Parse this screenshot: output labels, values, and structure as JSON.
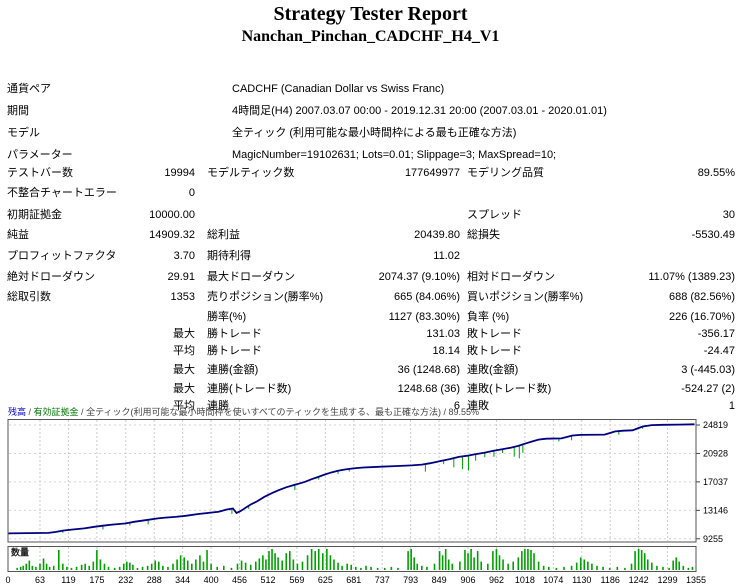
{
  "title": "Strategy Tester Report",
  "subtitle": "Nanchan_Pinchan_CADCHF_H4_V1",
  "info_rows": [
    {
      "label": "通貨ペア",
      "value": "CADCHF (Canadian Dollar vs Swiss Franc)"
    },
    {
      "label": "期間",
      "value": "4時間足(H4) 2007.03.07 00:00 - 2019.12.31 20:00 (2007.03.01 - 2020.01.01)"
    },
    {
      "label": "モデル",
      "value": "全ティック (利用可能な最小時間枠による最も正確な方法)"
    },
    {
      "label": "パラメーター",
      "value": "MagicNumber=19102631; Lots=0.01; Slippage=3; MaxSpread=10;"
    }
  ],
  "stat_rows": [
    {
      "c1": "テストバー数",
      "c2": "19994",
      "c3": "モデルティック数",
      "c4": "177649977",
      "c5": "モデリング品質",
      "c6": "89.55%"
    },
    {
      "c1": "不整合チャートエラー",
      "c2": "0",
      "c3": "",
      "c4": "",
      "c5": "",
      "c6": ""
    },
    {
      "c1": "初期証拠金",
      "c2": "10000.00",
      "c3": "",
      "c4": "",
      "c5": "スプレッド",
      "c6": "30"
    },
    {
      "c1": "純益",
      "c2": "14909.32",
      "c3": "総利益",
      "c4": "20439.80",
      "c5": "総損失",
      "c6": "-5530.49"
    },
    {
      "c1": "プロフィットファクタ",
      "c2": "3.70",
      "c3": "期待利得",
      "c4": "11.02",
      "c5": "",
      "c6": ""
    },
    {
      "c1": "絶対ドローダウン",
      "c2": "29.91",
      "c3": "最大ドローダウン",
      "c4": "2074.37 (9.10%)",
      "c5": "相対ドローダウン",
      "c6": "11.07% (1389.23)"
    },
    {
      "c1": "総取引数",
      "c2": "1353",
      "c3": "売りポジション(勝率%)",
      "c4": "665 (84.06%)",
      "c5": "買いポジション(勝率%)",
      "c6": "688 (82.56%)"
    },
    {
      "c1": "",
      "c2": "",
      "c3": "勝率(%)",
      "c4": "1127 (83.30%)",
      "c5": "負率 (%)",
      "c6": "226 (16.70%)"
    },
    {
      "c1": "",
      "c2": "最大",
      "c3": "勝トレード",
      "c4": "131.03",
      "c5": "敗トレード",
      "c6": "-356.17"
    },
    {
      "c1": "",
      "c2": "平均",
      "c3": "勝トレード",
      "c4": "18.14",
      "c5": "敗トレード",
      "c6": "-24.47"
    },
    {
      "c1": "",
      "c2": "最大",
      "c3": "連勝(金額)",
      "c4": "36 (1248.68)",
      "c5": "連敗(金額)",
      "c6": "3 (-445.03)"
    },
    {
      "c1": "",
      "c2": "最大",
      "c3": "連勝(トレード数)",
      "c4": "1248.68 (36)",
      "c5": "連敗(トレード数)",
      "c6": "-524.27 (2)"
    },
    {
      "c1": "",
      "c2": "平均",
      "c3": "連勝",
      "c4": "6",
      "c5": "連敗",
      "c6": "1"
    }
  ],
  "chart_caption": {
    "parts": [
      {
        "text": "残高",
        "color": "#0000CC"
      },
      {
        "text": " / ",
        "color": "#444444"
      },
      {
        "text": "有効証拠金",
        "color": "#007700"
      },
      {
        "text": " / ",
        "color": "#444444"
      },
      {
        "text": "全ティック(利用可能な最小時間枠を使いすべてのティックを生成する、最も正確な方法) / 89.55%",
        "color": "#444444"
      }
    ]
  },
  "chart_data": [
    {
      "type": "line",
      "name": "balance-equity-chart",
      "legend": [
        "残高",
        "有効証拠金"
      ],
      "legend_position": "top-left-caption",
      "grid": true,
      "x_ticks": [
        0,
        63,
        119,
        175,
        232,
        288,
        344,
        400,
        456,
        512,
        569,
        625,
        681,
        737,
        793,
        849,
        906,
        962,
        1018,
        1074,
        1130,
        1186,
        1242,
        1299,
        1355
      ],
      "y_ticks": [
        24819,
        20928,
        17037,
        13146,
        9255
      ],
      "xlim": [
        0,
        1355
      ],
      "ylim": [
        8840,
        25640
      ],
      "series": [
        {
          "name": "残高",
          "color": "#000080",
          "points": [
            [
              0,
              10000
            ],
            [
              80,
              10060
            ],
            [
              95,
              10200
            ],
            [
              108,
              10380
            ],
            [
              125,
              10520
            ],
            [
              150,
              10680
            ],
            [
              170,
              10900
            ],
            [
              187,
              11050
            ],
            [
              205,
              11200
            ],
            [
              230,
              11350
            ],
            [
              250,
              11600
            ],
            [
              276,
              11850
            ],
            [
              295,
              12050
            ],
            [
              310,
              12150
            ],
            [
              330,
              12250
            ],
            [
              350,
              12400
            ],
            [
              375,
              12650
            ],
            [
              395,
              12800
            ],
            [
              415,
              12950
            ],
            [
              430,
              13250
            ],
            [
              443,
              13400
            ],
            [
              450,
              12780
            ],
            [
              458,
              13050
            ],
            [
              468,
              13500
            ],
            [
              478,
              13950
            ],
            [
              490,
              14350
            ],
            [
              505,
              15000
            ],
            [
              520,
              15500
            ],
            [
              533,
              15900
            ],
            [
              548,
              16300
            ],
            [
              560,
              16550
            ],
            [
              572,
              16780
            ],
            [
              585,
              17050
            ],
            [
              598,
              17400
            ],
            [
              610,
              17700
            ],
            [
              622,
              18000
            ],
            [
              635,
              18300
            ],
            [
              650,
              18550
            ],
            [
              665,
              18750
            ],
            [
              680,
              18880
            ],
            [
              700,
              19000
            ],
            [
              730,
              19100
            ],
            [
              762,
              19200
            ],
            [
              795,
              19300
            ],
            [
              815,
              19400
            ],
            [
              832,
              19600
            ],
            [
              852,
              19900
            ],
            [
              870,
              20150
            ],
            [
              888,
              20450
            ],
            [
              905,
              20620
            ],
            [
              920,
              20820
            ],
            [
              938,
              21020
            ],
            [
              955,
              21270
            ],
            [
              972,
              21480
            ],
            [
              990,
              21720
            ],
            [
              1005,
              21960
            ],
            [
              1018,
              22260
            ],
            [
              1032,
              22560
            ],
            [
              1045,
              22820
            ],
            [
              1060,
              22940
            ],
            [
              1090,
              22990
            ],
            [
              1112,
              23380
            ],
            [
              1128,
              23460
            ],
            [
              1175,
              23500
            ],
            [
              1196,
              23940
            ],
            [
              1212,
              24040
            ],
            [
              1230,
              24090
            ],
            [
              1250,
              24620
            ],
            [
              1268,
              24800
            ],
            [
              1290,
              24850
            ],
            [
              1320,
              24880
            ],
            [
              1352,
              24909
            ]
          ]
        },
        {
          "name": "有効証拠金",
          "color": "#00A000",
          "drawdown_spikes": [
            [
              108,
              320
            ],
            [
              187,
              520
            ],
            [
              240,
              400
            ],
            [
              276,
              620
            ],
            [
              441,
              720
            ],
            [
              474,
              420
            ],
            [
              565,
              720
            ],
            [
              612,
              400
            ],
            [
              650,
              420
            ],
            [
              672,
              350
            ],
            [
              822,
              1050
            ],
            [
              858,
              520
            ],
            [
              878,
              1250
            ],
            [
              895,
              1750
            ],
            [
              907,
              2050
            ],
            [
              921,
              900
            ],
            [
              939,
              620
            ],
            [
              957,
              820
            ],
            [
              974,
              520
            ],
            [
              997,
              1350
            ],
            [
              1007,
              1750
            ],
            [
              1014,
              1150
            ],
            [
              1085,
              420
            ],
            [
              1110,
              620
            ],
            [
              1203,
              500
            ],
            [
              1250,
              320
            ]
          ]
        }
      ]
    },
    {
      "type": "bar",
      "name": "volume-chart",
      "label": "数量",
      "color": "#00A000",
      "grid": true,
      "x_ticks": [
        0,
        63,
        119,
        175,
        232,
        288,
        344,
        400,
        456,
        512,
        569,
        625,
        681,
        737,
        793,
        849,
        906,
        962,
        1018,
        1074,
        1130,
        1186,
        1242,
        1299,
        1355
      ],
      "xlim": [
        0,
        1355
      ],
      "bars": [
        [
          18,
          0.1
        ],
        [
          25,
          0.15
        ],
        [
          30,
          0.2
        ],
        [
          36,
          0.3
        ],
        [
          42,
          0.45
        ],
        [
          48,
          0.2
        ],
        [
          55,
          0.15
        ],
        [
          63,
          0.3
        ],
        [
          70,
          0.55
        ],
        [
          76,
          0.3
        ],
        [
          82,
          0.15
        ],
        [
          90,
          0.2
        ],
        [
          100,
          0.95
        ],
        [
          108,
          0.3
        ],
        [
          116,
          0.15
        ],
        [
          125,
          0.1
        ],
        [
          135,
          0.15
        ],
        [
          145,
          0.25
        ],
        [
          152,
          0.3
        ],
        [
          160,
          0.2
        ],
        [
          168,
          0.4
        ],
        [
          175,
          0.95
        ],
        [
          182,
          0.5
        ],
        [
          190,
          0.3
        ],
        [
          198,
          0.15
        ],
        [
          210,
          0.1
        ],
        [
          220,
          0.15
        ],
        [
          228,
          0.3
        ],
        [
          234,
          0.4
        ],
        [
          240,
          0.35
        ],
        [
          246,
          0.25
        ],
        [
          255,
          0.1
        ],
        [
          265,
          0.15
        ],
        [
          275,
          0.2
        ],
        [
          283,
          0.3
        ],
        [
          290,
          0.45
        ],
        [
          297,
          0.4
        ],
        [
          305,
          0.2
        ],
        [
          315,
          0.15
        ],
        [
          325,
          0.3
        ],
        [
          333,
          0.5
        ],
        [
          340,
          0.7
        ],
        [
          347,
          0.6
        ],
        [
          354,
          0.45
        ],
        [
          362,
          0.3
        ],
        [
          370,
          0.5
        ],
        [
          378,
          0.7
        ],
        [
          385,
          0.4
        ],
        [
          392,
          0.95
        ],
        [
          400,
          0.3
        ],
        [
          412,
          0.15
        ],
        [
          425,
          0.2
        ],
        [
          440,
          0.1
        ],
        [
          452,
          0.3
        ],
        [
          460,
          0.45
        ],
        [
          468,
          0.35
        ],
        [
          478,
          0.25
        ],
        [
          488,
          0.4
        ],
        [
          495,
          0.55
        ],
        [
          502,
          0.7
        ],
        [
          508,
          0.5
        ],
        [
          514,
          0.9
        ],
        [
          520,
          1.0
        ],
        [
          526,
          0.8
        ],
        [
          532,
          0.6
        ],
        [
          540,
          0.45
        ],
        [
          548,
          0.8
        ],
        [
          555,
          0.9
        ],
        [
          562,
          0.5
        ],
        [
          570,
          0.3
        ],
        [
          580,
          0.4
        ],
        [
          590,
          0.7
        ],
        [
          598,
          1.0
        ],
        [
          605,
          0.9
        ],
        [
          612,
          1.0
        ],
        [
          620,
          0.8
        ],
        [
          628,
          1.0
        ],
        [
          635,
          0.7
        ],
        [
          642,
          0.5
        ],
        [
          650,
          0.35
        ],
        [
          658,
          0.2
        ],
        [
          668,
          0.3
        ],
        [
          676,
          0.25
        ],
        [
          685,
          0.15
        ],
        [
          695,
          0.1
        ],
        [
          705,
          0.2
        ],
        [
          715,
          0.15
        ],
        [
          728,
          0.1
        ],
        [
          742,
          0.1
        ],
        [
          755,
          0.15
        ],
        [
          768,
          0.1
        ],
        [
          788,
          0.9
        ],
        [
          794,
          1.0
        ],
        [
          800,
          0.6
        ],
        [
          806,
          0.3
        ],
        [
          815,
          0.2
        ],
        [
          825,
          0.15
        ],
        [
          840,
          0.3
        ],
        [
          850,
          0.9
        ],
        [
          856,
          0.7
        ],
        [
          862,
          1.0
        ],
        [
          868,
          0.5
        ],
        [
          875,
          0.3
        ],
        [
          890,
          0.4
        ],
        [
          900,
          0.95
        ],
        [
          906,
          0.8
        ],
        [
          912,
          1.0
        ],
        [
          918,
          0.6
        ],
        [
          925,
          0.9
        ],
        [
          932,
          0.4
        ],
        [
          945,
          0.3
        ],
        [
          955,
          0.9
        ],
        [
          962,
          1.0
        ],
        [
          968,
          0.7
        ],
        [
          975,
          0.5
        ],
        [
          985,
          0.3
        ],
        [
          995,
          0.4
        ],
        [
          1005,
          0.6
        ],
        [
          1012,
          0.9
        ],
        [
          1018,
          1.0
        ],
        [
          1024,
          1.0
        ],
        [
          1030,
          0.95
        ],
        [
          1036,
          0.8
        ],
        [
          1045,
          0.4
        ],
        [
          1055,
          0.2
        ],
        [
          1065,
          0.15
        ],
        [
          1080,
          0.1
        ],
        [
          1095,
          0.15
        ],
        [
          1110,
          0.2
        ],
        [
          1120,
          0.35
        ],
        [
          1128,
          0.6
        ],
        [
          1135,
          0.5
        ],
        [
          1142,
          0.4
        ],
        [
          1150,
          0.3
        ],
        [
          1160,
          0.2
        ],
        [
          1172,
          0.15
        ],
        [
          1185,
          0.1
        ],
        [
          1200,
          0.15
        ],
        [
          1215,
          0.1
        ],
        [
          1228,
          0.3
        ],
        [
          1235,
          0.9
        ],
        [
          1242,
          1.0
        ],
        [
          1248,
          0.95
        ],
        [
          1254,
          0.8
        ],
        [
          1260,
          0.5
        ],
        [
          1268,
          0.35
        ],
        [
          1278,
          0.2
        ],
        [
          1290,
          0.15
        ],
        [
          1302,
          0.1
        ],
        [
          1310,
          0.45
        ],
        [
          1316,
          0.6
        ],
        [
          1322,
          0.4
        ],
        [
          1330,
          0.2
        ],
        [
          1340,
          0.1
        ],
        [
          1348,
          0.15
        ]
      ]
    }
  ]
}
